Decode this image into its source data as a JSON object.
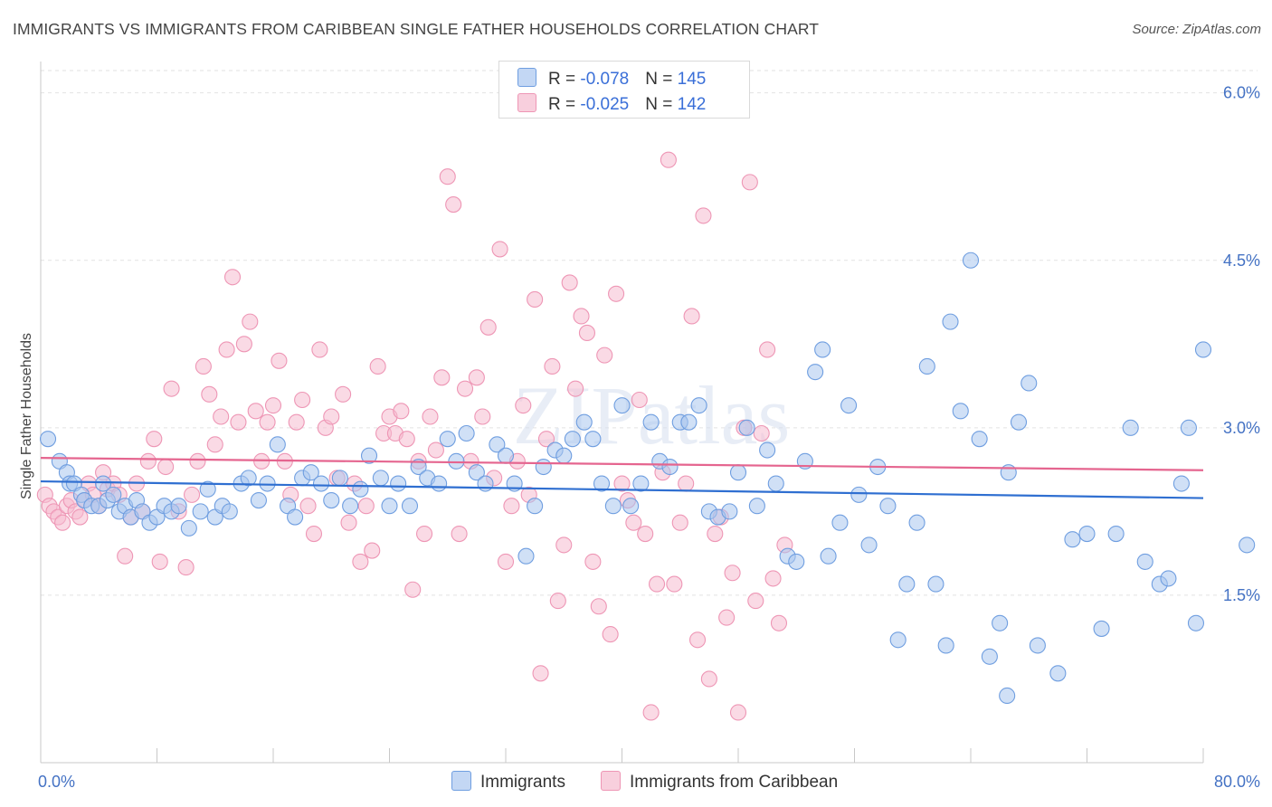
{
  "title": "IMMIGRANTS VS IMMIGRANTS FROM CARIBBEAN SINGLE FATHER HOUSEHOLDS CORRELATION CHART",
  "source": "Source: ZipAtlas.com",
  "watermark": "ZIPatlas",
  "colors": {
    "blue_fill": "#a9c6ef",
    "blue_stroke": "#6f9ee0",
    "blue_line": "#2f6fd1",
    "pink_fill": "#f5bcd0",
    "pink_stroke": "#ee96b5",
    "pink_line": "#e5658f",
    "tick_text": "#4472c4",
    "grid": "#e2e2e2"
  },
  "legend": {
    "rows": [
      {
        "r_label": "R = ",
        "r_value": "-0.078",
        "n_label": "N = ",
        "n_value": "145"
      },
      {
        "r_label": "R = ",
        "r_value": "-0.025",
        "n_label": "N = ",
        "n_value": "142"
      }
    ]
  },
  "bottom_legend": [
    "Immigrants",
    "Immigrants from Caribbean"
  ],
  "chart_data": {
    "type": "scatter",
    "title": "IMMIGRANTS VS IMMIGRANTS FROM CARIBBEAN SINGLE FATHER HOUSEHOLDS CORRELATION CHART",
    "xlabel": "",
    "ylabel": "Single Father Households",
    "xlim": [
      0,
      80
    ],
    "ylim": [
      0,
      6.2
    ],
    "x_tick_labels": [
      "0.0%",
      "80.0%"
    ],
    "y_ticks": [
      1.5,
      3.0,
      4.5,
      6.0
    ],
    "y_tick_labels": [
      "1.5%",
      "3.0%",
      "4.5%",
      "6.0%"
    ],
    "grid": true,
    "legend_position": "top-center",
    "series": [
      {
        "name": "Immigrants",
        "r": -0.078,
        "n": 145,
        "trend": {
          "x0": 0,
          "y0": 2.52,
          "x1": 80,
          "y1": 2.37
        },
        "points": [
          [
            0.5,
            2.9
          ],
          [
            1.3,
            2.7
          ],
          [
            1.8,
            2.6
          ],
          [
            2.0,
            2.5
          ],
          [
            2.3,
            2.5
          ],
          [
            2.8,
            2.4
          ],
          [
            3.0,
            2.35
          ],
          [
            3.5,
            2.3
          ],
          [
            4.0,
            2.3
          ],
          [
            4.3,
            2.5
          ],
          [
            4.6,
            2.35
          ],
          [
            5.0,
            2.4
          ],
          [
            5.4,
            2.25
          ],
          [
            5.8,
            2.3
          ],
          [
            6.2,
            2.2
          ],
          [
            6.6,
            2.35
          ],
          [
            7.0,
            2.25
          ],
          [
            7.5,
            2.15
          ],
          [
            8.0,
            2.2
          ],
          [
            8.5,
            2.3
          ],
          [
            9.0,
            2.25
          ],
          [
            9.5,
            2.3
          ],
          [
            10.2,
            2.1
          ],
          [
            11.0,
            2.25
          ],
          [
            11.5,
            2.45
          ],
          [
            12.0,
            2.2
          ],
          [
            12.5,
            2.3
          ],
          [
            13.0,
            2.25
          ],
          [
            13.8,
            2.5
          ],
          [
            14.3,
            2.55
          ],
          [
            15.0,
            2.35
          ],
          [
            15.6,
            2.5
          ],
          [
            16.3,
            2.85
          ],
          [
            17.0,
            2.3
          ],
          [
            17.5,
            2.2
          ],
          [
            18.0,
            2.55
          ],
          [
            18.6,
            2.6
          ],
          [
            19.3,
            2.5
          ],
          [
            20.0,
            2.35
          ],
          [
            20.6,
            2.55
          ],
          [
            21.3,
            2.3
          ],
          [
            22.0,
            2.45
          ],
          [
            22.6,
            2.75
          ],
          [
            23.4,
            2.55
          ],
          [
            24.0,
            2.3
          ],
          [
            24.6,
            2.5
          ],
          [
            25.4,
            2.3
          ],
          [
            26.0,
            2.65
          ],
          [
            26.6,
            2.55
          ],
          [
            27.4,
            2.5
          ],
          [
            28.0,
            2.9
          ],
          [
            28.6,
            2.7
          ],
          [
            29.3,
            2.95
          ],
          [
            30.0,
            2.6
          ],
          [
            30.6,
            2.5
          ],
          [
            31.4,
            2.85
          ],
          [
            32.0,
            2.75
          ],
          [
            32.6,
            2.5
          ],
          [
            33.4,
            1.85
          ],
          [
            34.0,
            2.3
          ],
          [
            34.6,
            2.65
          ],
          [
            35.4,
            2.8
          ],
          [
            36.0,
            2.75
          ],
          [
            36.6,
            2.9
          ],
          [
            37.4,
            3.05
          ],
          [
            38.0,
            2.9
          ],
          [
            38.6,
            2.5
          ],
          [
            39.4,
            2.3
          ],
          [
            40.0,
            3.2
          ],
          [
            40.6,
            2.3
          ],
          [
            41.3,
            2.5
          ],
          [
            42.0,
            3.05
          ],
          [
            42.6,
            2.7
          ],
          [
            43.3,
            2.65
          ],
          [
            44.0,
            3.05
          ],
          [
            44.6,
            3.05
          ],
          [
            45.3,
            3.2
          ],
          [
            46.0,
            2.25
          ],
          [
            46.6,
            2.2
          ],
          [
            47.4,
            2.25
          ],
          [
            48.0,
            2.6
          ],
          [
            48.6,
            3.0
          ],
          [
            49.3,
            2.3
          ],
          [
            50.0,
            2.8
          ],
          [
            50.6,
            2.5
          ],
          [
            51.4,
            1.85
          ],
          [
            52.0,
            1.8
          ],
          [
            52.6,
            2.7
          ],
          [
            53.3,
            3.5
          ],
          [
            53.8,
            3.7
          ],
          [
            54.2,
            1.85
          ],
          [
            55.0,
            2.15
          ],
          [
            55.6,
            3.2
          ],
          [
            56.3,
            2.4
          ],
          [
            57.0,
            1.95
          ],
          [
            57.6,
            2.65
          ],
          [
            58.3,
            2.3
          ],
          [
            59.0,
            1.1
          ],
          [
            59.6,
            1.6
          ],
          [
            60.3,
            2.15
          ],
          [
            61.0,
            3.55
          ],
          [
            61.6,
            1.6
          ],
          [
            62.3,
            1.05
          ],
          [
            62.6,
            3.95
          ],
          [
            63.3,
            3.15
          ],
          [
            64.0,
            4.5
          ],
          [
            64.6,
            2.9
          ],
          [
            65.3,
            0.95
          ],
          [
            66.0,
            1.25
          ],
          [
            66.6,
            2.6
          ],
          [
            67.3,
            3.05
          ],
          [
            68.0,
            3.4
          ],
          [
            68.6,
            1.05
          ],
          [
            70.0,
            0.8
          ],
          [
            71.0,
            2.0
          ],
          [
            72.0,
            2.05
          ],
          [
            73.0,
            1.2
          ],
          [
            74.0,
            2.05
          ],
          [
            75.0,
            3.0
          ],
          [
            76.0,
            1.8
          ],
          [
            77.0,
            1.6
          ],
          [
            77.6,
            1.65
          ],
          [
            78.5,
            2.5
          ],
          [
            79.0,
            3.0
          ],
          [
            79.5,
            1.25
          ],
          [
            80.0,
            3.7
          ],
          [
            83.0,
            1.95
          ],
          [
            66.5,
            0.6
          ]
        ]
      },
      {
        "name": "Immigrants from Caribbean",
        "r": -0.025,
        "n": 142,
        "trend": {
          "x0": 0,
          "y0": 2.73,
          "x1": 80,
          "y1": 2.62
        },
        "points": [
          [
            0.3,
            2.4
          ],
          [
            0.6,
            2.3
          ],
          [
            0.9,
            2.25
          ],
          [
            1.2,
            2.2
          ],
          [
            1.5,
            2.15
          ],
          [
            1.8,
            2.3
          ],
          [
            2.1,
            2.35
          ],
          [
            2.4,
            2.25
          ],
          [
            2.7,
            2.2
          ],
          [
            3.0,
            2.35
          ],
          [
            3.3,
            2.5
          ],
          [
            3.6,
            2.4
          ],
          [
            4.0,
            2.3
          ],
          [
            4.3,
            2.6
          ],
          [
            4.6,
            2.45
          ],
          [
            5.0,
            2.5
          ],
          [
            5.4,
            2.4
          ],
          [
            5.8,
            1.85
          ],
          [
            6.2,
            2.2
          ],
          [
            6.6,
            2.5
          ],
          [
            7.0,
            2.25
          ],
          [
            7.4,
            2.7
          ],
          [
            7.8,
            2.9
          ],
          [
            8.2,
            1.8
          ],
          [
            8.6,
            2.65
          ],
          [
            9.0,
            3.35
          ],
          [
            9.5,
            2.25
          ],
          [
            10.0,
            1.75
          ],
          [
            10.4,
            2.4
          ],
          [
            10.8,
            2.7
          ],
          [
            11.2,
            3.55
          ],
          [
            11.6,
            3.3
          ],
          [
            12.0,
            2.85
          ],
          [
            12.4,
            3.1
          ],
          [
            12.8,
            3.7
          ],
          [
            13.2,
            4.35
          ],
          [
            13.6,
            3.05
          ],
          [
            14.0,
            3.75
          ],
          [
            14.4,
            3.95
          ],
          [
            14.8,
            3.15
          ],
          [
            15.2,
            2.7
          ],
          [
            15.6,
            3.05
          ],
          [
            16.0,
            3.2
          ],
          [
            16.4,
            3.6
          ],
          [
            16.8,
            2.7
          ],
          [
            17.2,
            2.4
          ],
          [
            17.6,
            3.05
          ],
          [
            18.0,
            3.25
          ],
          [
            18.4,
            2.3
          ],
          [
            18.8,
            2.05
          ],
          [
            19.2,
            3.7
          ],
          [
            19.6,
            3.0
          ],
          [
            20.0,
            3.1
          ],
          [
            20.4,
            2.55
          ],
          [
            20.8,
            3.3
          ],
          [
            21.2,
            2.15
          ],
          [
            21.6,
            2.5
          ],
          [
            22.0,
            1.8
          ],
          [
            22.4,
            2.3
          ],
          [
            22.8,
            1.9
          ],
          [
            23.2,
            3.55
          ],
          [
            23.6,
            2.95
          ],
          [
            24.0,
            3.1
          ],
          [
            24.4,
            2.95
          ],
          [
            24.8,
            3.15
          ],
          [
            25.2,
            2.9
          ],
          [
            25.6,
            1.55
          ],
          [
            26.0,
            2.7
          ],
          [
            26.4,
            2.05
          ],
          [
            26.8,
            3.1
          ],
          [
            27.2,
            2.8
          ],
          [
            27.6,
            3.45
          ],
          [
            28.0,
            5.25
          ],
          [
            28.4,
            5.0
          ],
          [
            28.8,
            2.05
          ],
          [
            29.2,
            3.35
          ],
          [
            29.6,
            2.7
          ],
          [
            30.0,
            3.45
          ],
          [
            30.4,
            3.1
          ],
          [
            30.8,
            3.9
          ],
          [
            31.2,
            2.55
          ],
          [
            31.6,
            4.6
          ],
          [
            32.0,
            1.8
          ],
          [
            32.4,
            2.3
          ],
          [
            32.8,
            2.7
          ],
          [
            33.2,
            3.2
          ],
          [
            33.6,
            2.4
          ],
          [
            34.0,
            4.15
          ],
          [
            34.4,
            0.8
          ],
          [
            34.8,
            2.9
          ],
          [
            35.2,
            3.55
          ],
          [
            35.6,
            1.45
          ],
          [
            36.0,
            1.95
          ],
          [
            36.4,
            4.3
          ],
          [
            36.8,
            3.35
          ],
          [
            37.2,
            4.0
          ],
          [
            37.6,
            3.85
          ],
          [
            38.0,
            1.8
          ],
          [
            38.4,
            1.4
          ],
          [
            38.8,
            3.65
          ],
          [
            39.2,
            1.15
          ],
          [
            39.6,
            4.2
          ],
          [
            40.0,
            2.5
          ],
          [
            40.4,
            2.35
          ],
          [
            40.8,
            2.15
          ],
          [
            41.2,
            3.25
          ],
          [
            41.6,
            2.05
          ],
          [
            42.0,
            0.45
          ],
          [
            42.4,
            1.6
          ],
          [
            42.8,
            2.6
          ],
          [
            43.2,
            5.4
          ],
          [
            43.6,
            1.6
          ],
          [
            44.0,
            2.15
          ],
          [
            44.4,
            2.5
          ],
          [
            44.8,
            4.0
          ],
          [
            45.2,
            1.1
          ],
          [
            45.6,
            4.9
          ],
          [
            46.0,
            0.75
          ],
          [
            46.4,
            2.05
          ],
          [
            46.8,
            2.2
          ],
          [
            47.2,
            1.3
          ],
          [
            47.6,
            1.7
          ],
          [
            48.0,
            0.45
          ],
          [
            48.4,
            3.0
          ],
          [
            48.8,
            5.2
          ],
          [
            49.2,
            1.45
          ],
          [
            49.6,
            2.95
          ],
          [
            50.0,
            3.7
          ],
          [
            50.4,
            1.65
          ],
          [
            50.8,
            1.25
          ],
          [
            51.2,
            1.95
          ]
        ]
      }
    ]
  }
}
